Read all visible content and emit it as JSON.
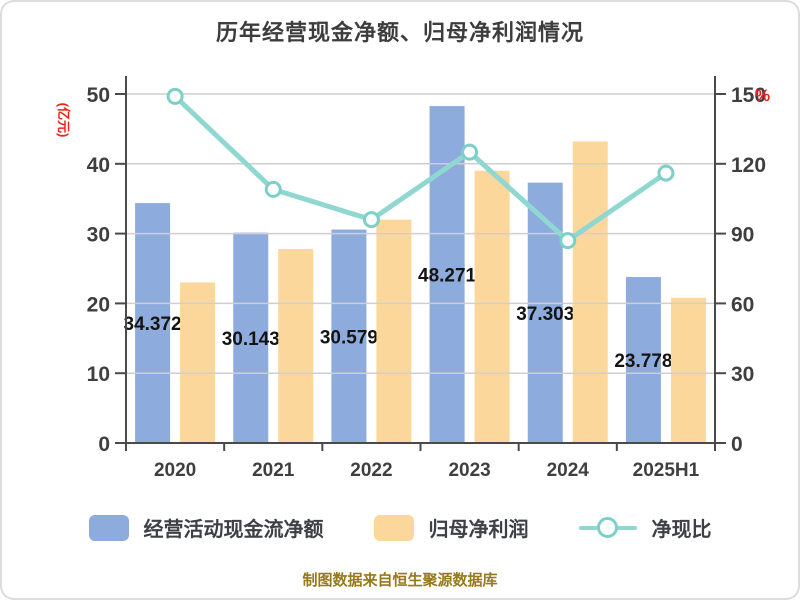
{
  "title": "历年经营现金净额、归母净利润情况",
  "caption": "制图数据来自恒生聚源数据库",
  "colors": {
    "bar_cashflow": "#8dabdc",
    "bar_profit": "#fcd79b",
    "line_ratio": "#8fd7d0",
    "marker_stroke": "#7cd0c8",
    "axis": "#4a4a4a",
    "grid": "#cfcfcf",
    "axis_name_red": "#ee2317",
    "text": "#3f3f3f"
  },
  "chart_data": {
    "type": "bar",
    "subtype": "grouped bars + line on secondary axis",
    "categories": [
      "2020",
      "2021",
      "2022",
      "2023",
      "2024",
      "2025H1"
    ],
    "series": [
      {
        "name": "经营活动现金流净额",
        "type": "bar",
        "axis": "left",
        "color": "#8dabdc",
        "values": [
          34.372,
          30.143,
          30.579,
          48.271,
          37.303,
          23.778
        ],
        "labels": [
          "34.372",
          "30.143",
          "30.579",
          "48.271",
          "37.303",
          "23.778"
        ]
      },
      {
        "name": "归母净利润",
        "type": "bar",
        "axis": "left",
        "color": "#fcd79b",
        "values": [
          23.0,
          27.8,
          32.0,
          39.0,
          43.2,
          20.8
        ]
      },
      {
        "name": "净现比",
        "type": "line",
        "axis": "right",
        "color": "#8fd7d0",
        "marker": "circle",
        "values": [
          149,
          109,
          96,
          125,
          87,
          116
        ]
      }
    ],
    "axes": {
      "left": {
        "name": "(亿元)",
        "min": 0,
        "max": 50,
        "ticks": [
          0,
          10,
          20,
          30,
          40,
          50
        ]
      },
      "right": {
        "name": "%",
        "min": 0,
        "max": 150,
        "ticks": [
          0,
          30,
          60,
          90,
          120,
          150
        ]
      }
    },
    "legend": [
      "经营活动现金流净额",
      "归母净利润",
      "净现比"
    ],
    "legend_position": "bottom",
    "grid": true
  }
}
